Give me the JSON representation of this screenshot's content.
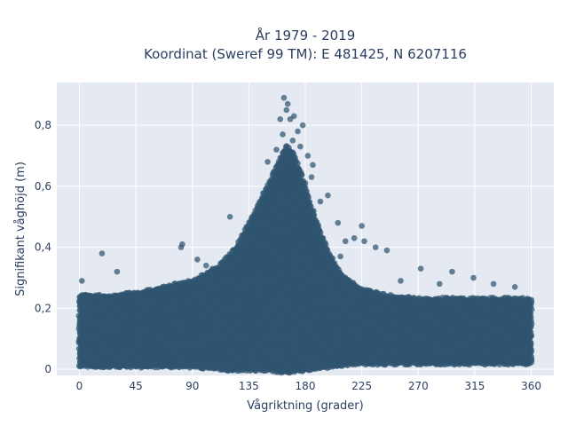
{
  "chart_data": {
    "type": "scatter",
    "title_lines": [
      "År 1979 - 2019",
      "Koordinat (Sweref 99 TM): E 481425, N 6207116"
    ],
    "xlabel": "Vågriktning (grader)",
    "ylabel": "Signifikant våghöjd (m)",
    "xlim": [
      -18,
      378
    ],
    "ylim": [
      -0.02,
      0.94
    ],
    "x_ticks": [
      0,
      45,
      90,
      135,
      180,
      225,
      270,
      315,
      360
    ],
    "x_tick_labels": [
      "0",
      "45",
      "90",
      "135",
      "180",
      "225",
      "270",
      "315",
      "360"
    ],
    "y_ticks": [
      0,
      0.2,
      0.4,
      0.6,
      0.8
    ],
    "y_tick_labels": [
      "0",
      "0,2",
      "0,4",
      "0,6",
      "0,8"
    ],
    "grid": true,
    "marker_color": "#2f5470",
    "marker_opacity": 0.72,
    "background_color": "#e5e9f2",
    "series": [
      {
        "points": [
          [
            163,
            0.89
          ],
          [
            166,
            0.87
          ],
          [
            165,
            0.85
          ],
          [
            171,
            0.83
          ],
          [
            168,
            0.82
          ],
          [
            160,
            0.82
          ],
          [
            178,
            0.8
          ],
          [
            174,
            0.78
          ],
          [
            162,
            0.77
          ],
          [
            170,
            0.75
          ],
          [
            176,
            0.73
          ],
          [
            157,
            0.72
          ],
          [
            182,
            0.7
          ],
          [
            150,
            0.68
          ],
          [
            186,
            0.67
          ],
          [
            185,
            0.63
          ],
          [
            180,
            0.61
          ],
          [
            198,
            0.57
          ],
          [
            192,
            0.55
          ],
          [
            184,
            0.52
          ],
          [
            120,
            0.5
          ],
          [
            206,
            0.48
          ],
          [
            225,
            0.47
          ],
          [
            219,
            0.43
          ],
          [
            212,
            0.42
          ],
          [
            227,
            0.42
          ],
          [
            236,
            0.4
          ],
          [
            245,
            0.39
          ],
          [
            208,
            0.37
          ],
          [
            82,
            0.41
          ],
          [
            81,
            0.4
          ],
          [
            18,
            0.38
          ],
          [
            30,
            0.32
          ],
          [
            2,
            0.29
          ],
          [
            94,
            0.36
          ],
          [
            101,
            0.34
          ],
          [
            106,
            0.33
          ],
          [
            272,
            0.33
          ],
          [
            297,
            0.32
          ],
          [
            314,
            0.3
          ],
          [
            330,
            0.28
          ],
          [
            347,
            0.27
          ],
          [
            256,
            0.29
          ],
          [
            287,
            0.28
          ]
        ],
        "band_min": [
          [
            0,
            0.01
          ],
          [
            45,
            0.01
          ],
          [
            90,
            0.01
          ],
          [
            120,
            0.0
          ],
          [
            150,
            0.0
          ],
          [
            165,
            -0.01
          ],
          [
            180,
            0.0
          ],
          [
            200,
            0.01
          ],
          [
            220,
            0.02
          ],
          [
            360,
            0.02
          ]
        ],
        "band_max": [
          [
            0,
            0.24
          ],
          [
            30,
            0.24
          ],
          [
            60,
            0.26
          ],
          [
            90,
            0.29
          ],
          [
            110,
            0.33
          ],
          [
            125,
            0.4
          ],
          [
            138,
            0.5
          ],
          [
            150,
            0.6
          ],
          [
            158,
            0.67
          ],
          [
            165,
            0.73
          ],
          [
            170,
            0.71
          ],
          [
            176,
            0.65
          ],
          [
            185,
            0.53
          ],
          [
            192,
            0.45
          ],
          [
            200,
            0.37
          ],
          [
            210,
            0.3
          ],
          [
            225,
            0.26
          ],
          [
            245,
            0.24
          ],
          [
            270,
            0.23
          ],
          [
            360,
            0.23
          ]
        ]
      }
    ]
  }
}
